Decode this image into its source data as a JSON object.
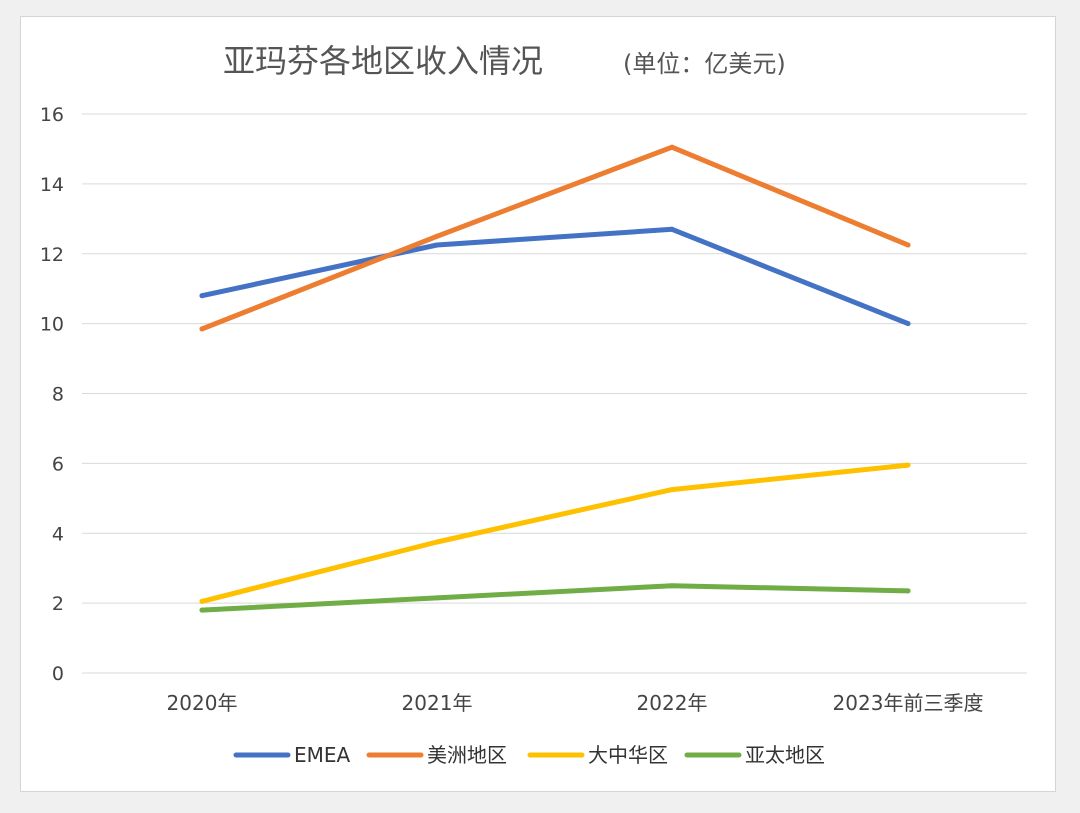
{
  "chart_data": {
    "type": "line",
    "title": "亚玛芬各地区收入情况",
    "subtitle": "(单位：亿美元)",
    "categories": [
      "2020年",
      "2021年",
      "2022年",
      "2023年前三季度"
    ],
    "ylim": [
      0,
      16
    ],
    "yticks": [
      0,
      2,
      4,
      6,
      8,
      10,
      12,
      14,
      16
    ],
    "xlabel": "",
    "ylabel": "",
    "grid": true,
    "legend_position": "bottom",
    "series": [
      {
        "name": "EMEA",
        "color": "#4472C4",
        "values": [
          10.8,
          12.25,
          12.7,
          10.0
        ]
      },
      {
        "name": "美洲地区",
        "color": "#ED7D31",
        "values": [
          9.85,
          12.5,
          15.05,
          12.25
        ]
      },
      {
        "name": "大中华区",
        "color": "#FFC000",
        "values": [
          2.05,
          3.75,
          5.25,
          5.95
        ]
      },
      {
        "name": "亚太地区",
        "color": "#70AD47",
        "values": [
          1.8,
          2.15,
          2.5,
          2.35
        ]
      }
    ]
  }
}
